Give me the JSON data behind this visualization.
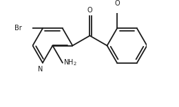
{
  "background_color": "#ffffff",
  "line_color": "#1a1a1a",
  "line_width": 1.3,
  "text_color": "#1a1a1a",
  "font_size": 7.0,
  "xlim": [
    -0.5,
    5.2
  ],
  "ylim": [
    -2.2,
    2.5
  ]
}
